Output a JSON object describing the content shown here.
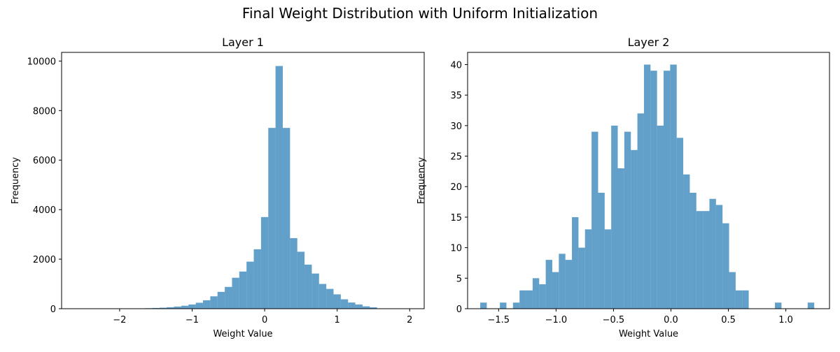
{
  "figure": {
    "title": "Final Weight Distribution with Uniform Initialization"
  },
  "chart_data": [
    {
      "type": "bar",
      "title": "Layer 1",
      "xlabel": "Weight Value",
      "ylabel": "Frequency",
      "xlim": [
        -2.8,
        2.2
      ],
      "ylim": [
        0,
        10350
      ],
      "xticks": [
        -2,
        -1,
        0,
        1,
        2
      ],
      "yticks": [
        0,
        2000,
        4000,
        6000,
        8000,
        10000
      ],
      "grid": false,
      "bar_color": "#1f77b4",
      "bar_alpha": 0.7,
      "bin_edges": [
        -2.55,
        -2.45,
        -2.35,
        -2.25,
        -2.15,
        -2.05,
        -1.95,
        -1.85,
        -1.75,
        -1.65,
        -1.55,
        -1.45,
        -1.35,
        -1.25,
        -1.15,
        -1.05,
        -0.95,
        -0.85,
        -0.75,
        -0.65,
        -0.55,
        -0.45,
        -0.35,
        -0.25,
        -0.15,
        -0.05,
        0.05,
        0.15,
        0.25,
        0.35,
        0.45,
        0.55,
        0.65,
        0.75,
        0.85,
        0.95,
        1.05,
        1.15,
        1.25,
        1.35,
        1.45,
        1.55
      ],
      "values": [
        2,
        0,
        0,
        0,
        0,
        0,
        5,
        10,
        15,
        20,
        30,
        40,
        60,
        85,
        120,
        170,
        240,
        340,
        500,
        680,
        880,
        1250,
        1500,
        1900,
        2400,
        3700,
        7300,
        9800,
        7300,
        2850,
        2300,
        1780,
        1420,
        1000,
        800,
        580,
        380,
        250,
        170,
        95,
        55,
        30
      ]
    },
    {
      "type": "bar",
      "title": "Layer 2",
      "xlabel": "Weight Value",
      "ylabel": "Frequency",
      "xlim": [
        -1.77,
        1.38
      ],
      "ylim": [
        0,
        42
      ],
      "xticks": [
        -1.5,
        -1.0,
        -0.5,
        0.0,
        0.5,
        1.0
      ],
      "xtick_labels": [
        "−1.5",
        "−1.0",
        "−0.5",
        "0.0",
        "0.5",
        "1.0"
      ],
      "yticks": [
        0,
        5,
        10,
        15,
        20,
        25,
        30,
        35,
        40
      ],
      "grid": false,
      "bar_color": "#1f77b4",
      "bar_alpha": 0.7,
      "bin_edges": [
        -1.66,
        -1.603,
        -1.546,
        -1.489,
        -1.432,
        -1.375,
        -1.318,
        -1.261,
        -1.204,
        -1.147,
        -1.09,
        -1.033,
        -0.976,
        -0.919,
        -0.862,
        -0.805,
        -0.748,
        -0.691,
        -0.634,
        -0.577,
        -0.52,
        -0.463,
        -0.406,
        -0.349,
        -0.292,
        -0.235,
        -0.178,
        -0.121,
        -0.064,
        -0.007,
        0.05,
        0.107,
        0.164,
        0.221,
        0.278,
        0.335,
        0.392,
        0.449,
        0.506,
        0.563,
        0.62,
        0.677,
        0.734,
        0.791,
        0.848,
        0.905,
        0.962,
        1.019,
        1.076,
        1.133,
        1.19,
        1.247
      ],
      "values": [
        1,
        0,
        0,
        1,
        0,
        1,
        3,
        3,
        5,
        4,
        8,
        6,
        9,
        8,
        15,
        10,
        13,
        29,
        19,
        13,
        30,
        23,
        29,
        26,
        32,
        40,
        39,
        30,
        39,
        40,
        28,
        22,
        19,
        16,
        16,
        18,
        17,
        14,
        6,
        3,
        3,
        0,
        0,
        0,
        0,
        1,
        0,
        0,
        0,
        0,
        1
      ]
    }
  ]
}
